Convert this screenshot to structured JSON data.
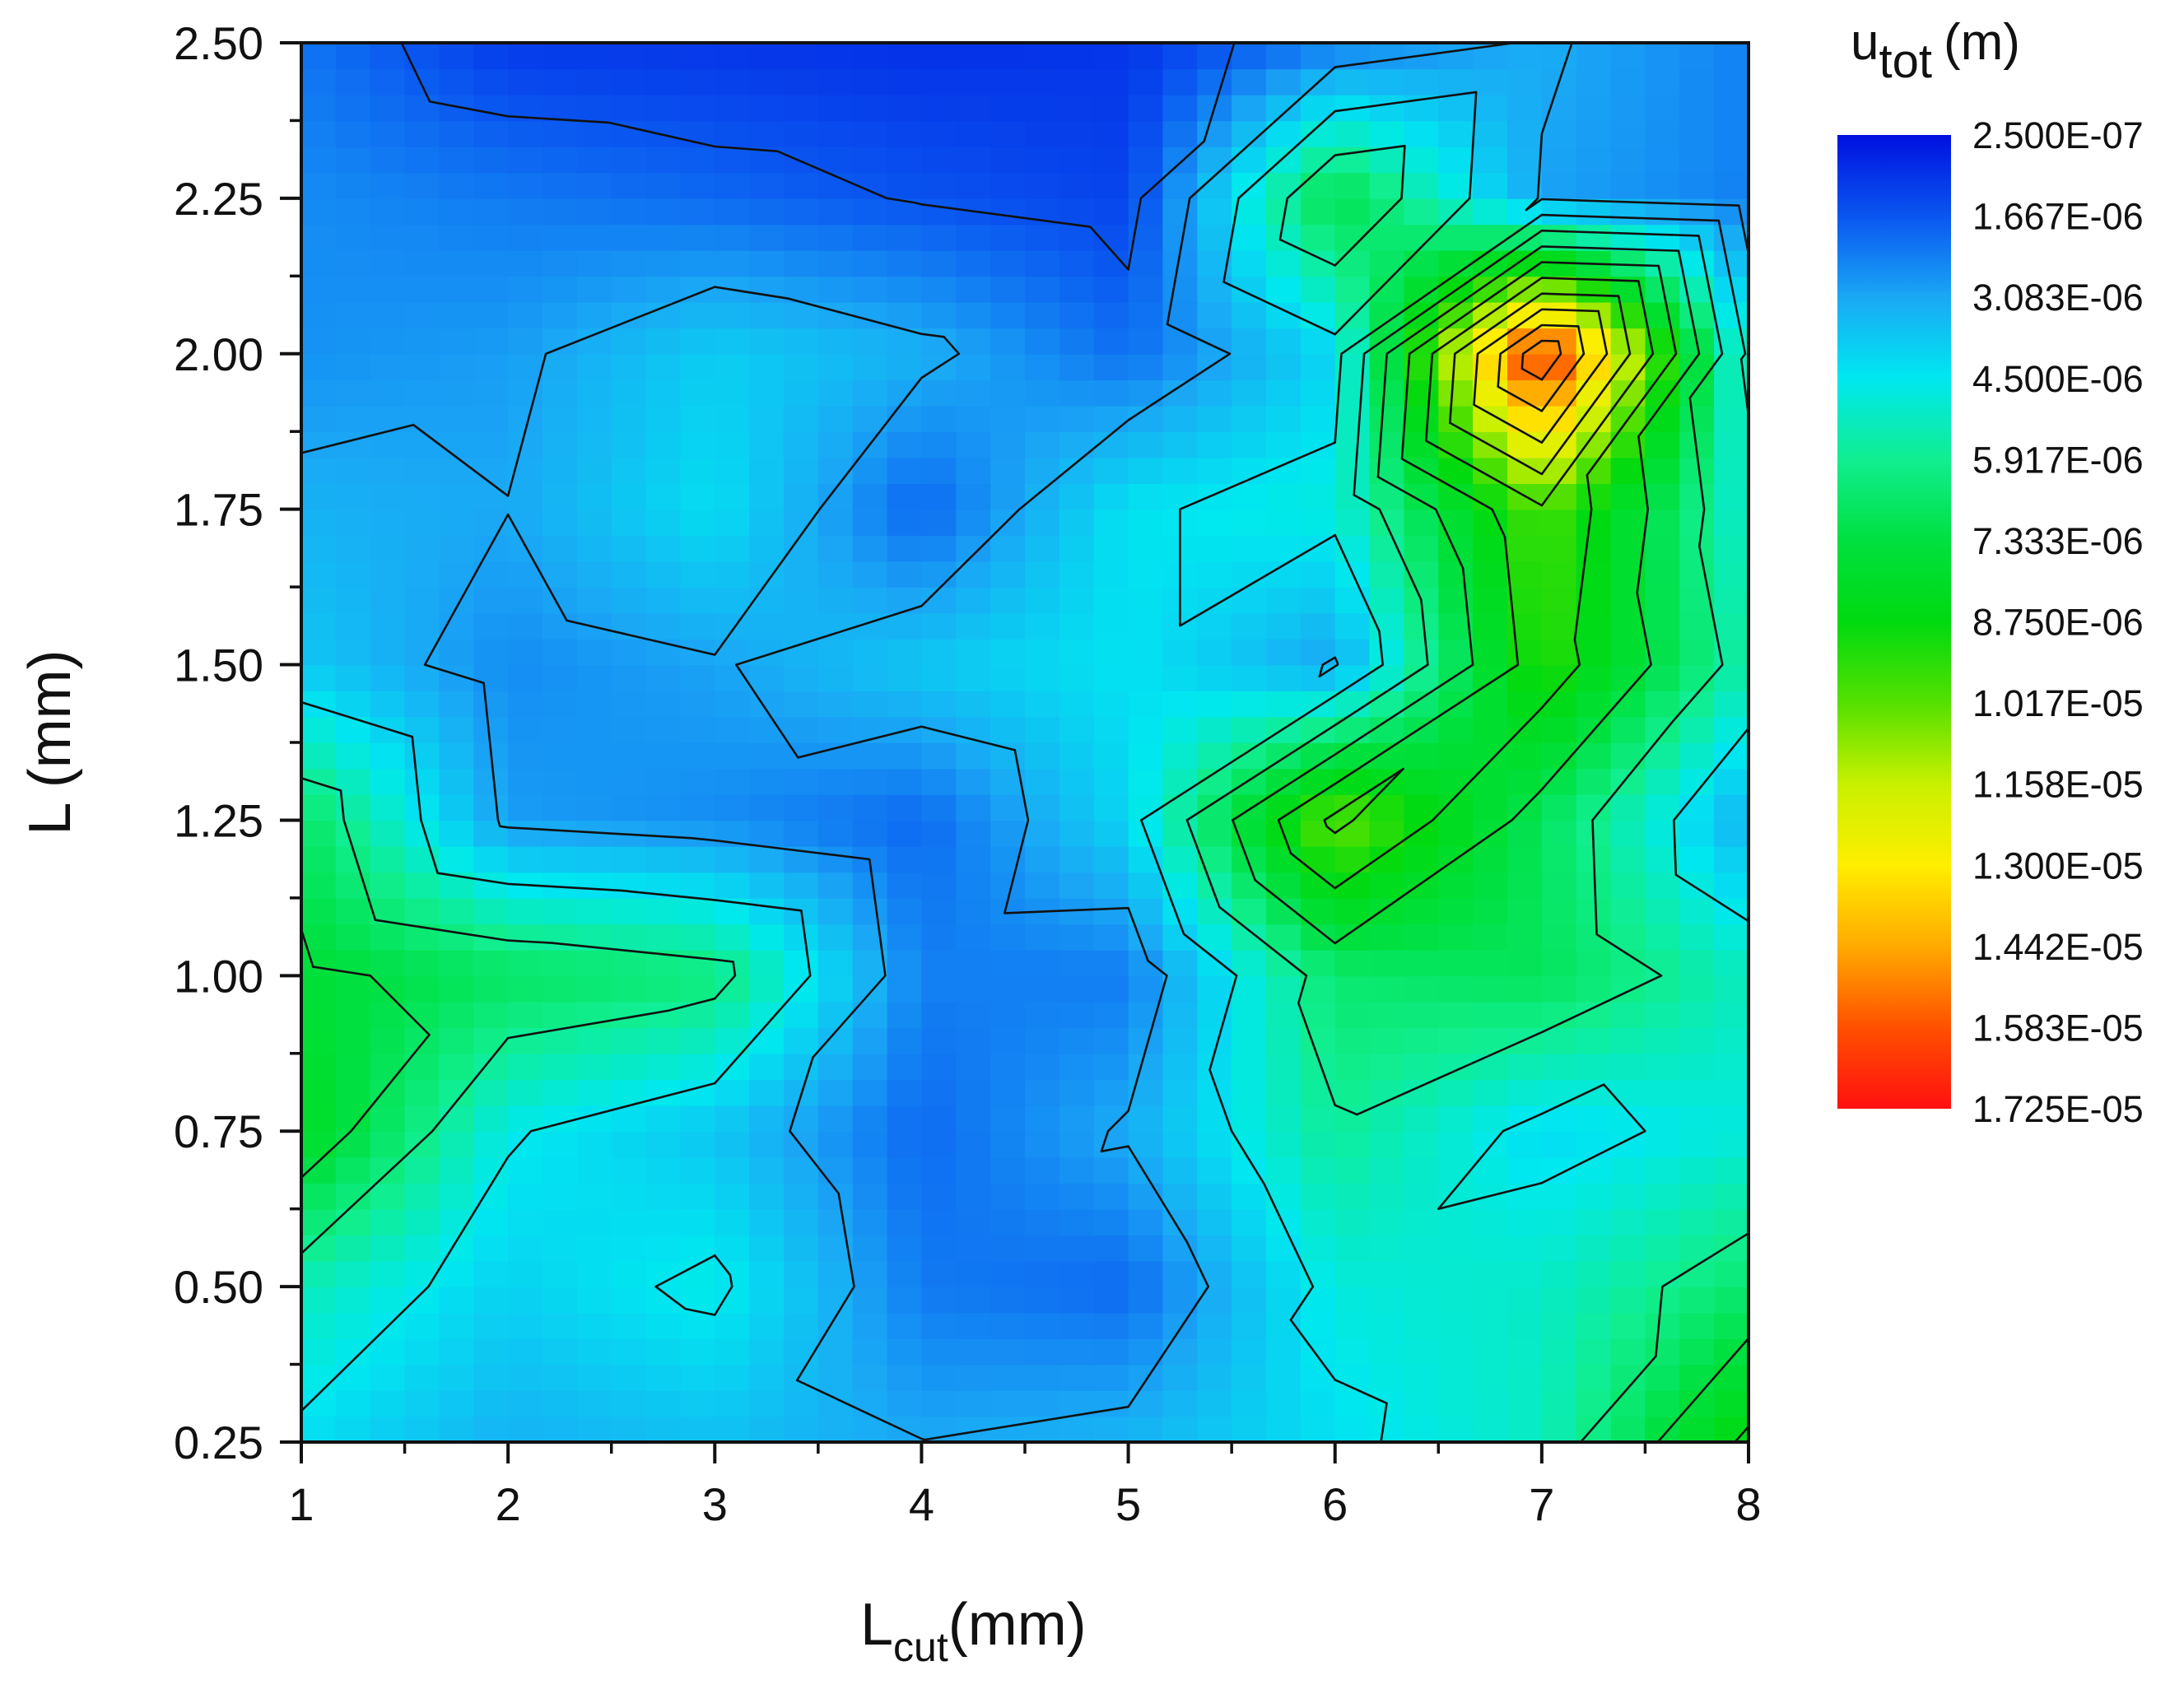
{
  "chart_data": {
    "type": "heatmap",
    "subtype": "filled-contour",
    "x": [
      1,
      2,
      3,
      4,
      5,
      6,
      7,
      8
    ],
    "y": [
      0.25,
      0.5,
      0.75,
      1.0,
      1.25,
      1.5,
      1.75,
      2.0,
      2.25,
      2.5
    ],
    "z_unit": "m",
    "z": [
      [
        4.3e-06,
        3.3e-06,
        3.6e-06,
        3.1e-06,
        3.4e-06,
        4.3e-06,
        5.2e-06,
        9e-06
      ],
      [
        5.3e-06,
        4e-06,
        4.7e-06,
        2.3e-06,
        2e-06,
        4.8e-06,
        5.1e-06,
        6.5e-06
      ],
      [
        8.2e-06,
        4.6e-06,
        3.7e-06,
        2e-06,
        3.2e-06,
        5.8e-06,
        4.2e-06,
        4.8e-06
      ],
      [
        7.6e-06,
        6.8e-06,
        6.3e-06,
        2.4e-06,
        2.3e-06,
        6.5e-06,
        6.9e-06,
        5.2e-06
      ],
      [
        6.7e-06,
        2.9e-06,
        2.6e-06,
        2e-06,
        4.1e-06,
        1.05e-05,
        6.8e-06,
        3.2e-06
      ],
      [
        3.8e-06,
        2.6e-06,
        3e-06,
        3.8e-06,
        4.4e-06,
        3e-06,
        9.5e-06,
        5.4e-06
      ],
      [
        3.3e-06,
        3.1e-06,
        4.3e-06,
        1.9e-06,
        4.4e-06,
        4.8e-06,
        1e-05,
        4.8e-06
      ],
      [
        2.7e-06,
        2.9e-06,
        3.9e-06,
        3.3e-06,
        2.1e-06,
        4.1e-06,
        1.7e-05,
        4.3e-06
      ],
      [
        2.6e-06,
        2.3e-06,
        2e-06,
        1.6e-06,
        1.3e-06,
        7.3e-06,
        3e-06,
        2.4e-06
      ],
      [
        2.2e-06,
        1.1e-06,
        1e-06,
        9e-07,
        1e-06,
        2.3e-06,
        3.2e-06,
        2.4e-06
      ]
    ],
    "xlabel_main": "L",
    "xlabel_sub": "cut",
    "xlabel_unit": "(mm)",
    "ylabel": "L (mm)",
    "x_ticks": [
      "1",
      "2",
      "3",
      "4",
      "5",
      "6",
      "7",
      "8"
    ],
    "y_ticks": [
      "0.25",
      "0.50",
      "0.75",
      "1.00",
      "1.25",
      "1.50",
      "1.75",
      "2.00",
      "2.25",
      "2.50"
    ],
    "xlim": [
      1,
      8
    ],
    "ylim": [
      0.25,
      2.5
    ],
    "colorbar": {
      "title_main": "u",
      "title_sub": "tot",
      "title_unit": "(m)",
      "position": "right",
      "levels": [
        "2.500E-07",
        "1.667E-06",
        "3.083E-06",
        "4.500E-06",
        "5.917E-06",
        "7.333E-06",
        "8.750E-06",
        "1.017E-05",
        "1.158E-05",
        "1.300E-05",
        "1.442E-05",
        "1.583E-05",
        "1.725E-05"
      ],
      "level_values": [
        2.5e-07,
        1.667e-06,
        3.083e-06,
        4.5e-06,
        5.917e-06,
        7.333e-06,
        8.75e-06,
        1.017e-05,
        1.158e-05,
        1.3e-05,
        1.442e-05,
        1.583e-05,
        1.725e-05
      ],
      "colors": [
        "#0010e0",
        "#0a56f0",
        "#1aa8f5",
        "#00e8f0",
        "#10ee90",
        "#00e040",
        "#00da10",
        "#55e000",
        "#c8f000",
        "#ffee00",
        "#ffaa00",
        "#ff5000",
        "#ff1010"
      ]
    },
    "contour_line_color": "#111111",
    "grid": false
  }
}
